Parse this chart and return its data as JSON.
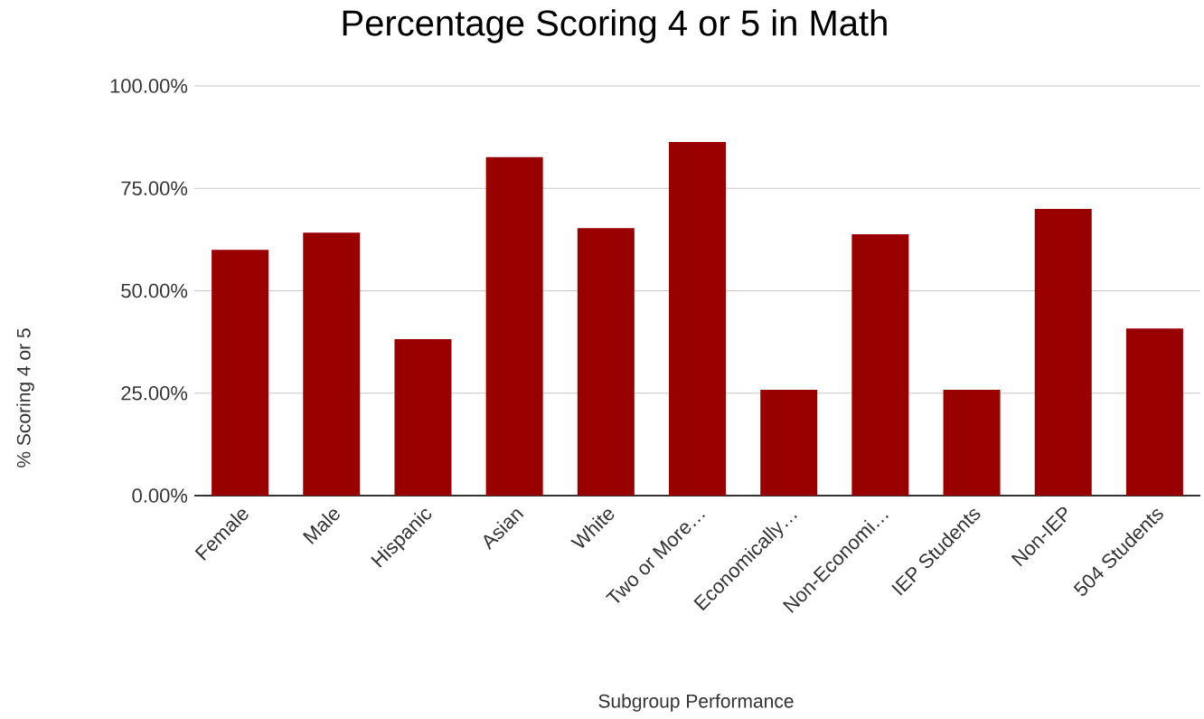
{
  "chart_data": {
    "type": "bar",
    "title": "Percentage Scoring 4 or 5 in Math",
    "xlabel": "Subgroup Performance",
    "ylabel": "% Scoring 4 or 5",
    "categories": [
      "Female",
      "Male",
      "Hispanic",
      "Asian",
      "White",
      "Two or More…",
      "Economically…",
      "Non-Economi…",
      "IEP Students",
      "Non-IEP",
      "504 Students"
    ],
    "values": [
      60.0,
      64.2,
      38.2,
      82.6,
      65.3,
      86.3,
      25.8,
      63.8,
      25.8,
      70.0,
      40.8
    ],
    "color": "#990000",
    "ylim": [
      0,
      100
    ],
    "yticks": [
      {
        "value": 0,
        "label": "0.00%"
      },
      {
        "value": 25,
        "label": "25.00%"
      },
      {
        "value": 50,
        "label": "50.00%"
      },
      {
        "value": 75,
        "label": "75.00%"
      },
      {
        "value": 100,
        "label": "100.00%"
      }
    ],
    "grid": "y"
  }
}
